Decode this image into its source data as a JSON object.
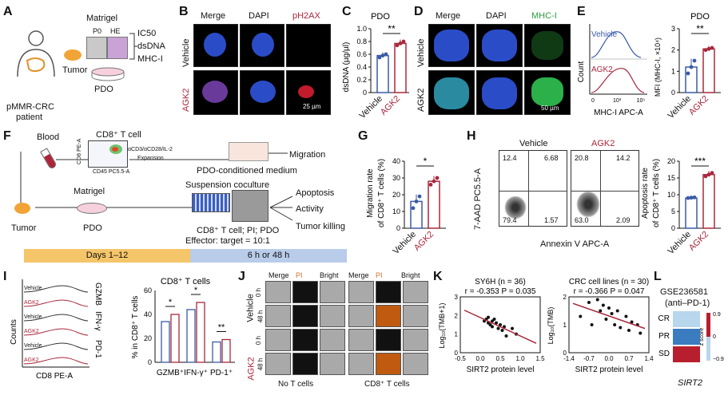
{
  "panels": {
    "A": "A",
    "B": "B",
    "C": "C",
    "D": "D",
    "E": "E",
    "F": "F",
    "G": "G",
    "H": "H",
    "I": "I",
    "J": "J",
    "K": "K",
    "L": "L"
  },
  "colors": {
    "vehicle": "#3a5aa8",
    "agk2": "#a8283c",
    "dapi": "#2b4cc7",
    "ph2ax": "#d02020",
    "mhc": "#2bb04a",
    "timeline_left": "#f5c56a",
    "timeline_right": "#b9cce9"
  },
  "a": {
    "matrigel": "Matrigel",
    "p0": "P0",
    "he": "HE",
    "tumor": "Tumor",
    "ic50": "IC50",
    "dsdna": "dsDNA",
    "mhc1": "MHC-I",
    "pdo": "PDO",
    "patient_1": "pMMR-CRC",
    "patient_2": "patient"
  },
  "b": {
    "cols": [
      "Merge",
      "DAPI",
      "pH2AX"
    ],
    "rows": [
      "Vehicle",
      "AGK2"
    ],
    "scale": "25 µm"
  },
  "c": {
    "title": "PDO",
    "ylabel": "dsDNA (µg/µl)",
    "sig": "**",
    "categories": [
      "Vehicle",
      "AGK2"
    ],
    "values": [
      0.58,
      0.77
    ],
    "points": [
      [
        0.55,
        0.58,
        0.6
      ],
      [
        0.74,
        0.77,
        0.8
      ]
    ],
    "ticks": [
      "0",
      "0.2",
      "0.4",
      "0.6",
      "0.8",
      "1.0"
    ],
    "ylim": [
      0,
      1.0
    ]
  },
  "d": {
    "cols": [
      "Merge",
      "DAPI",
      "MHC-I"
    ],
    "rows": [
      "Vehicle",
      "AGK2"
    ],
    "scale": "50 µm"
  },
  "e": {
    "vehicle": "Vehicle",
    "agk2": "AGK2",
    "count": "Count",
    "xlabel": "MHC-I APC-A",
    "xticks": [
      "0",
      "10³",
      "10⁵"
    ],
    "title": "PDO",
    "ylabel": "MFI (MHC-I, ×10⁴)",
    "sig": "**",
    "categories": [
      "Vehicle",
      "AGK2"
    ],
    "values": [
      1.2,
      2.05
    ],
    "points": [
      [
        0.9,
        1.2,
        1.5
      ],
      [
        2.0,
        2.05,
        2.1
      ]
    ],
    "ticks": [
      "0",
      "1",
      "2",
      "3"
    ],
    "ylim": [
      0,
      3
    ]
  },
  "f": {
    "blood": "Blood",
    "cd8": "CD8⁺ T cell",
    "antibody": "αCD3/αCD28/IL-2",
    "expansion": "Expansion",
    "migration": "Migration",
    "conditioned": "PDO-conditioned medium",
    "matrigel": "Matrigel",
    "tumor": "Tumor",
    "pdo": "PDO",
    "coculture": "Suspension coculture",
    "apoptosis": "Apoptosis",
    "activity": "Activity",
    "killing": "Tumor killing",
    "legend": "CD8⁺ T cell; PI; PDO",
    "ratio": "Effector: target = 10:1",
    "days": "Days 1–12",
    "hours": "6 h or 48 h",
    "facs_y": "CD8 PE-A",
    "facs_x": "CD45 PC5.5-A"
  },
  "g": {
    "ylabel1": "Migration rate",
    "ylabel2": "of CD8⁺ T cells (%)",
    "sig": "*",
    "categories": [
      "Vehicle",
      "AGK2"
    ],
    "values": [
      16,
      28
    ],
    "points": [
      [
        12,
        16,
        19
      ],
      [
        26,
        28,
        30
      ]
    ],
    "ticks": [
      "0",
      "10",
      "20",
      "30",
      "40"
    ],
    "ylim": [
      0,
      40
    ]
  },
  "h": {
    "vehicle": "Vehicle",
    "agk2": "AGK2",
    "ylabel": "7-AAD PC5.5-A",
    "xlabel": "Annexin V APC-A",
    "quads_vehicle": [
      "12.4",
      "6.68",
      "79.4",
      "1.57"
    ],
    "quads_agk2": [
      "20.8",
      "14.2",
      "63.0",
      "2.09"
    ],
    "ylabel1": "Apoptosis rate",
    "ylabel2": "of CD8⁺ T cells (%)",
    "sig": "***",
    "categories": [
      "Vehicle",
      "AGK2"
    ],
    "values": [
      9,
      16
    ],
    "points": [
      [
        9.0,
        9.1,
        9.2
      ],
      [
        15.5,
        16,
        16.5
      ]
    ],
    "ticks": [
      "0",
      "5",
      "10",
      "15",
      "20"
    ],
    "ylim": [
      0,
      20
    ]
  },
  "i": {
    "rows": [
      "Vehicle",
      "AGK2",
      "Vehicle",
      "AGK2",
      "Vehicle",
      "AGK2"
    ],
    "markers": [
      "GZMB",
      "IFN-γ",
      "PD-1"
    ],
    "counts": "Counts",
    "xlabel": "CD8 PE-A",
    "title": "CD8⁺ T cells",
    "ylabel": "% in CD8⁺ T cells",
    "categories": [
      "GZMB⁺",
      "IFN-γ⁺",
      "PD-1⁺"
    ],
    "sigs": [
      "*",
      "*",
      "**"
    ],
    "vehicle": [
      34,
      44,
      17
    ],
    "agk2": [
      40,
      50,
      19
    ],
    "ticks": [
      "0",
      "20",
      "40",
      "60"
    ],
    "ylim": [
      0,
      60
    ]
  },
  "j": {
    "cols": [
      "Merge",
      "PI",
      "Bright",
      "Merge",
      "PI",
      "Bright"
    ],
    "groups": [
      "Vehicle",
      "AGK2"
    ],
    "times": [
      "0 h",
      "48 h",
      "0 h",
      "48 h"
    ],
    "no_t": "No T cells",
    "with_t": "CD8⁺ T cells"
  },
  "k": {
    "left": {
      "title": "SY6H (n = 36)",
      "stats": "r = -0.353  P = 0.035",
      "ylabel": "Log₁₀(TMB+1)",
      "xlabel": "SIRT2 protein level",
      "xticks": [
        "-0.5",
        "0.0",
        "0.5",
        "1.0",
        "1.5"
      ],
      "yticks": [
        "0",
        "1",
        "2",
        "3"
      ]
    },
    "right": {
      "title": "CRC cell lines (n = 30)",
      "stats": "r = -0.366  P = 0.047",
      "ylabel": "Log₁₀(TMB)",
      "xlabel": "SIRT2 protein level",
      "xticks": [
        "-1.4",
        "-0.7",
        "0.0",
        "0.7",
        "1.4"
      ],
      "yticks": [
        "0",
        "1",
        "2"
      ]
    }
  },
  "l": {
    "title": "GSE236581",
    "subtitle": "(anti–PD-1)",
    "rows": [
      "CR",
      "PR",
      "SD"
    ],
    "values": [
      -0.9,
      0.0,
      0.9
    ],
    "scale_label": "z score",
    "ticks": [
      "0.9",
      "0",
      "−0.9"
    ],
    "gene": "SIRT2"
  },
  "chart_data": [
    {
      "type": "bar",
      "title": "PDO",
      "categories": [
        "Vehicle",
        "AGK2"
      ],
      "values": [
        0.58,
        0.77
      ],
      "ylabel": "dsDNA (µg/µl)",
      "ylim": [
        0,
        1.0
      ]
    },
    {
      "type": "bar",
      "title": "PDO",
      "categories": [
        "Vehicle",
        "AGK2"
      ],
      "values": [
        1.2,
        2.05
      ],
      "ylabel": "MFI (MHC-I, ×10⁴)",
      "ylim": [
        0,
        3
      ]
    },
    {
      "type": "bar",
      "categories": [
        "Vehicle",
        "AGK2"
      ],
      "values": [
        16,
        28
      ],
      "ylabel": "Migration rate of CD8⁺ T cells (%)",
      "ylim": [
        0,
        40
      ]
    },
    {
      "type": "bar",
      "categories": [
        "Vehicle",
        "AGK2"
      ],
      "values": [
        9,
        16
      ],
      "ylabel": "Apoptosis rate of CD8⁺ T cells (%)",
      "ylim": [
        0,
        20
      ]
    },
    {
      "type": "bar",
      "title": "CD8⁺ T cells",
      "categories": [
        "GZMB⁺",
        "IFN-γ⁺",
        "PD-1⁺"
      ],
      "series": [
        {
          "values": [
            34,
            44,
            17
          ]
        },
        {
          "values": [
            40,
            50,
            19
          ]
        }
      ],
      "ylabel": "% in CD8⁺ T cells",
      "ylim": [
        0,
        60
      ]
    },
    {
      "type": "scatter",
      "title": "SY6H (n = 36)",
      "xlabel": "SIRT2 protein level",
      "ylabel": "Log₁₀(TMB+1)",
      "x": [
        0.1,
        0.15,
        0.2,
        0.2,
        0.25,
        0.3,
        0.3,
        0.35,
        0.4,
        0.45,
        0.5,
        0.55,
        0.6,
        0.65,
        0.8,
        0.9
      ],
      "y": [
        1.7,
        1.8,
        1.6,
        1.9,
        1.5,
        1.7,
        1.4,
        1.8,
        1.6,
        1.3,
        1.5,
        1.2,
        1.4,
        0.9,
        1.3,
        1.0
      ]
    },
    {
      "type": "scatter",
      "title": "CRC cell lines (n = 30)",
      "xlabel": "SIRT2 protein level",
      "ylabel": "Log₁₀(TMB)",
      "x": [
        -1.0,
        -0.7,
        -0.6,
        -0.4,
        -0.3,
        -0.2,
        -0.1,
        0.0,
        0.1,
        0.2,
        0.3,
        0.4,
        0.6,
        0.7,
        0.8,
        1.0,
        1.1
      ],
      "y": [
        1.3,
        1.8,
        1.0,
        1.9,
        1.5,
        1.7,
        1.2,
        1.6,
        1.4,
        1.0,
        1.5,
        0.9,
        1.3,
        0.8,
        1.1,
        1.0,
        0.7
      ]
    },
    {
      "type": "heatmap",
      "categories": [
        "CR",
        "PR",
        "SD"
      ],
      "values": [
        -0.9,
        0.0,
        0.9
      ],
      "xlabel": "SIRT2"
    }
  ]
}
